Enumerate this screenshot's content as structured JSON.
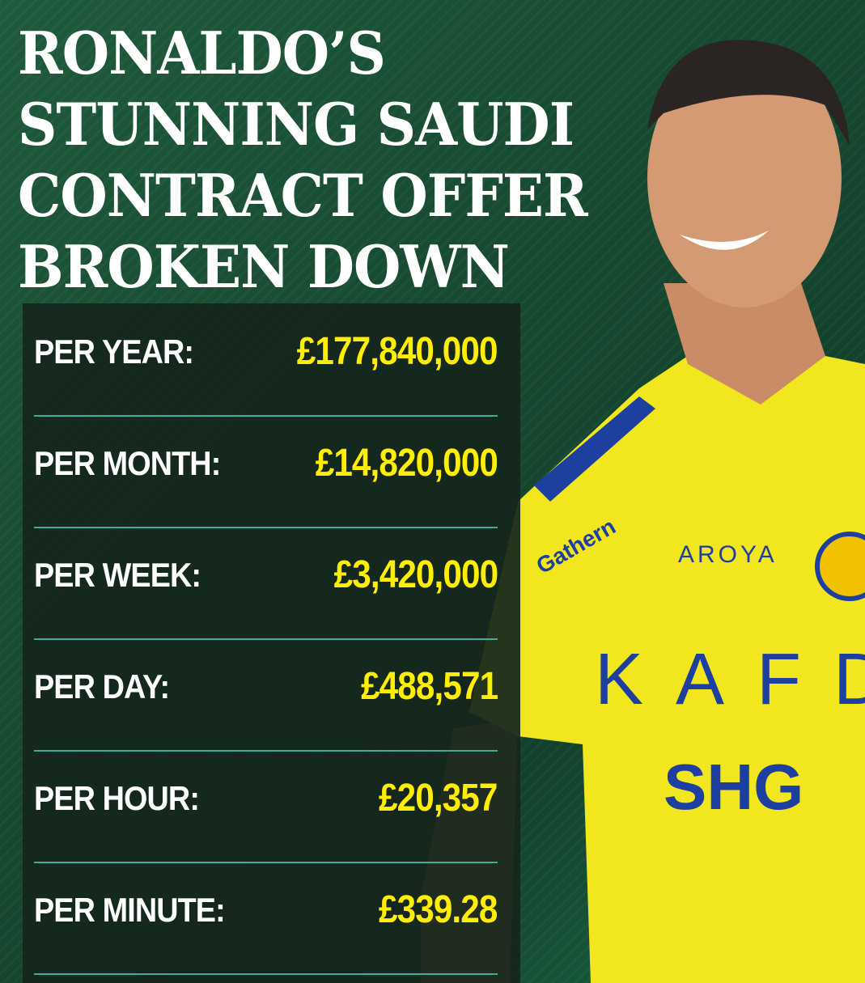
{
  "title_lines": [
    "RONALDO’S",
    "STUNNING SAUDI",
    "CONTRACT OFFER",
    "BROKEN DOWN"
  ],
  "rows": [
    {
      "label": "PER YEAR:",
      "value": "£177,840,000"
    },
    {
      "label": "PER MONTH:",
      "value": "£14,820,000"
    },
    {
      "label": "PER WEEK:",
      "value": "£3,420,000"
    },
    {
      "label": "PER DAY:",
      "value": "£488,571"
    },
    {
      "label": "PER HOUR:",
      "value": "£20,357"
    },
    {
      "label": "PER MINUTE:",
      "value": "£339.28"
    }
  ],
  "jersey_logos": {
    "gathern": "Gathern",
    "aroya": "AROYA",
    "kafd": "KAFD",
    "shg": "SHG"
  },
  "colors": {
    "background": "#174a31",
    "panel": "#16261c",
    "label": "#ffffff",
    "value": "#ffee00",
    "divider": "#3fae98",
    "jersey": "#f2e61f",
    "trim": "#1d3fa0"
  }
}
